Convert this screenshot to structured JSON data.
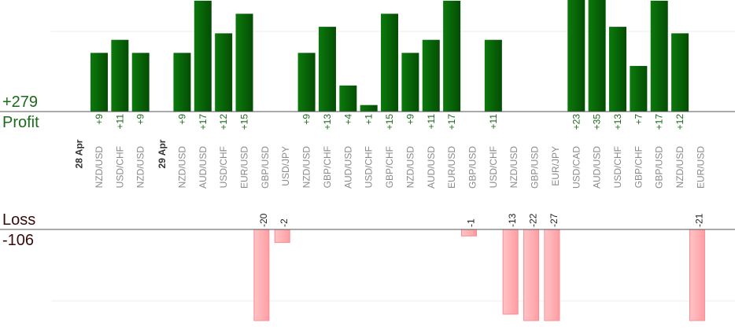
{
  "summary": {
    "profit_value": "+279",
    "profit_label": "Profit",
    "loss_label": "Loss",
    "loss_value": "-106"
  },
  "colors": {
    "profit_bar": "#0a6a0a",
    "profit_text": "#1a6b1a",
    "loss_bar": "#ffb0b4",
    "loss_text": "#222222",
    "date_text": "#333333",
    "pair_text": "#8a8a8a"
  },
  "chart_data": {
    "type": "bar",
    "title": "",
    "xlabel": "",
    "ylabel": "",
    "groups": [
      {
        "date": "28 Apr",
        "trades": [
          {
            "pair": "NZD/USD",
            "value": 9
          },
          {
            "pair": "USD/CHF",
            "value": 11
          },
          {
            "pair": "NZD/USD",
            "value": 9
          }
        ]
      },
      {
        "date": "29 Apr",
        "trades": [
          {
            "pair": "NZD/USD",
            "value": 9
          },
          {
            "pair": "AUD/USD",
            "value": 17
          },
          {
            "pair": "USD/CHF",
            "value": 12
          },
          {
            "pair": "EUR/USD",
            "value": 15
          },
          {
            "pair": "GBP/USD",
            "value": -20
          },
          {
            "pair": "USD/JPY",
            "value": -2
          },
          {
            "pair": "NZD/USD",
            "value": 9
          },
          {
            "pair": "GBP/CHF",
            "value": 13
          },
          {
            "pair": "AUD/USD",
            "value": 4
          },
          {
            "pair": "USD/CHF",
            "value": 1
          },
          {
            "pair": "GBP/CHF",
            "value": 15
          },
          {
            "pair": "NZD/USD",
            "value": 9
          },
          {
            "pair": "AUD/USD",
            "value": 11
          },
          {
            "pair": "EUR/USD",
            "value": 17
          },
          {
            "pair": "GBP/USD",
            "value": -1
          },
          {
            "pair": "USD/CHF",
            "value": 11
          },
          {
            "pair": "NZD/USD",
            "value": -13
          },
          {
            "pair": "GBP/USD",
            "value": -22
          },
          {
            "pair": "EUR/JPY",
            "value": -27
          },
          {
            "pair": "USD/CAD",
            "value": 23
          },
          {
            "pair": "AUD/USD",
            "value": 35
          },
          {
            "pair": "USD/CHF",
            "value": 13
          },
          {
            "pair": "GBP/CHF",
            "value": 7
          },
          {
            "pair": "GBP/USD",
            "value": 17
          },
          {
            "pair": "NZD/USD",
            "value": 12
          },
          {
            "pair": "EUR/USD",
            "value": -21
          }
        ]
      }
    ],
    "profit_axis_top": 14,
    "loss_axis_bottom": -20,
    "grid": true
  }
}
